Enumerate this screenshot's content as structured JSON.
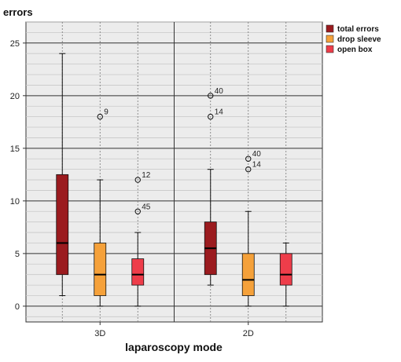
{
  "chart_data": {
    "type": "boxplot",
    "ylabel": "errors",
    "xlabel": "laparoscopy mode",
    "ylim": [
      -1.5,
      27
    ],
    "yticks": [
      0,
      5,
      10,
      15,
      20,
      25
    ],
    "categories": [
      "3D",
      "2D"
    ],
    "grid": "horizontal major and minor lines",
    "legend_position": "top-right",
    "series": [
      {
        "name": "total errors",
        "color": "#9b1b1f",
        "boxes": [
          {
            "category": "3D",
            "min": 1,
            "q1": 3,
            "median": 6,
            "q3": 12.5,
            "max": 24,
            "outliers": []
          },
          {
            "category": "2D",
            "min": 2,
            "q1": 3,
            "median": 5.5,
            "q3": 8,
            "max": 13,
            "outliers": [
              {
                "value": 20,
                "label": "40"
              },
              {
                "value": 18,
                "label": "14"
              }
            ]
          }
        ]
      },
      {
        "name": "drop sleeve",
        "color": "#f5a13a",
        "boxes": [
          {
            "category": "3D",
            "min": 0,
            "q1": 1,
            "median": 3,
            "q3": 6,
            "max": 12,
            "outliers": [
              {
                "value": 18,
                "label": "9"
              }
            ]
          },
          {
            "category": "2D",
            "min": 0,
            "q1": 1,
            "median": 2.5,
            "q3": 5,
            "max": 9,
            "outliers": [
              {
                "value": 14,
                "label": "40"
              },
              {
                "value": 13,
                "label": "14"
              }
            ]
          }
        ]
      },
      {
        "name": "open box",
        "color": "#ee3d4a",
        "boxes": [
          {
            "category": "3D",
            "min": 0,
            "q1": 2,
            "median": 3,
            "q3": 4.5,
            "max": 7,
            "outliers": [
              {
                "value": 12,
                "label": "12"
              },
              {
                "value": 9,
                "label": "45"
              }
            ]
          },
          {
            "category": "2D",
            "min": 0,
            "q1": 2,
            "median": 3,
            "q3": 5,
            "max": 6,
            "outliers": []
          }
        ]
      }
    ]
  }
}
